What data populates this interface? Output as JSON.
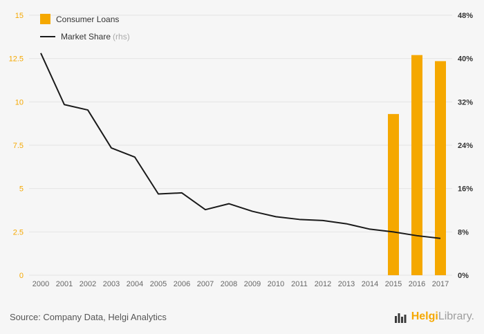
{
  "chart_data": {
    "type": "bar",
    "title": "",
    "categories": [
      "2000",
      "2001",
      "2002",
      "2003",
      "2004",
      "2005",
      "2006",
      "2007",
      "2008",
      "2009",
      "2010",
      "2011",
      "2012",
      "2013",
      "2014",
      "2015",
      "2016",
      "2017"
    ],
    "series": [
      {
        "name": "Consumer Loans",
        "type": "bar",
        "axis": "left",
        "color": "#F5A800",
        "values": [
          null,
          null,
          null,
          null,
          null,
          null,
          null,
          null,
          null,
          null,
          null,
          null,
          null,
          null,
          null,
          9.3,
          12.7,
          12.35
        ]
      },
      {
        "name": "Market Share",
        "type": "line",
        "axis": "right",
        "color": "#1a1a1a",
        "values": [
          41.0,
          31.5,
          30.5,
          23.5,
          21.8,
          15.0,
          15.2,
          12.1,
          13.2,
          11.8,
          10.8,
          10.3,
          10.1,
          9.5,
          8.5,
          8.0,
          7.3,
          6.8
        ]
      }
    ],
    "left_axis": {
      "min": 0,
      "max": 15,
      "labels": [
        "0",
        "2.5",
        "5",
        "7.5",
        "10",
        "12.5",
        "15"
      ],
      "color": "#F5A800"
    },
    "right_axis": {
      "min": 0,
      "max": 48,
      "labels": [
        "0%",
        "8%",
        "16%",
        "24%",
        "32%",
        "40%",
        "48%"
      ],
      "color": "#333333"
    },
    "grid": true,
    "legend_position": "top-left"
  },
  "legend": {
    "consumer_loans_label": "Consumer Loans",
    "market_share_label": "Market Share",
    "market_share_suffix": "(rhs)"
  },
  "footer": {
    "source": "Source: Company Data, Helgi Analytics",
    "logo_helgi": "Helgi",
    "logo_library": "Library."
  },
  "colors": {
    "bar": "#F5A800",
    "line": "#1a1a1a",
    "background": "#f6f6f6",
    "gridline": "#e3e3e3"
  }
}
